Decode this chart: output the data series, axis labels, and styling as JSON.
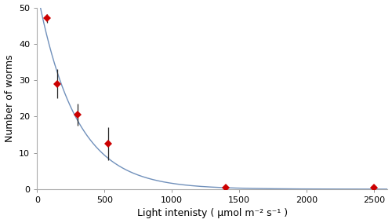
{
  "x_data": [
    75,
    150,
    300,
    525,
    1400,
    2500
  ],
  "y_data": [
    47.0,
    29.0,
    20.5,
    12.5,
    0.3,
    0.3
  ],
  "y_err": [
    1.2,
    4.0,
    3.0,
    4.5,
    0.5,
    0.2
  ],
  "marker_color": "#cc0000",
  "marker_size": 5,
  "line_color": "#7090bb",
  "line_width": 1.0,
  "regression_a": 4.0,
  "regression_b": 0.00353,
  "xlim": [
    0,
    2600
  ],
  "ylim": [
    0,
    50
  ],
  "xticks": [
    0,
    500,
    1000,
    1500,
    2000,
    2500
  ],
  "yticks": [
    0,
    10,
    20,
    30,
    40,
    50
  ],
  "xlabel": "Light intenisty ( μmol m⁻² s⁻¹ )",
  "ylabel": "Number of worms",
  "xlabel_fontsize": 9,
  "ylabel_fontsize": 9,
  "tick_fontsize": 8,
  "background_color": "#ffffff",
  "figure_bg": "#ffffff"
}
